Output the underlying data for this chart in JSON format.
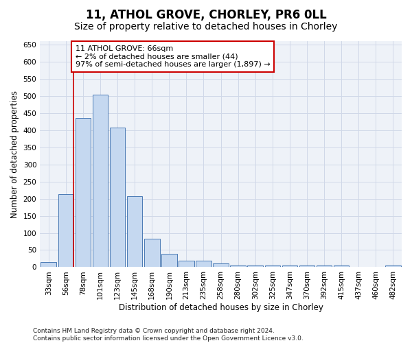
{
  "title": "11, ATHOL GROVE, CHORLEY, PR6 0LL",
  "subtitle": "Size of property relative to detached houses in Chorley",
  "xlabel": "Distribution of detached houses by size in Chorley",
  "ylabel": "Number of detached properties",
  "categories": [
    "33sqm",
    "56sqm",
    "78sqm",
    "101sqm",
    "123sqm",
    "145sqm",
    "168sqm",
    "190sqm",
    "213sqm",
    "235sqm",
    "258sqm",
    "280sqm",
    "302sqm",
    "325sqm",
    "347sqm",
    "370sqm",
    "392sqm",
    "415sqm",
    "437sqm",
    "460sqm",
    "482sqm"
  ],
  "values": [
    15,
    213,
    435,
    503,
    407,
    207,
    84,
    38,
    18,
    18,
    10,
    5,
    4,
    4,
    4,
    4,
    4,
    4,
    1,
    1,
    4
  ],
  "bar_color": "#c5d8f0",
  "bar_edge_color": "#4a7ab5",
  "red_line_index": 1,
  "annotation_text": "11 ATHOL GROVE: 66sqm\n← 2% of detached houses are smaller (44)\n97% of semi-detached houses are larger (1,897) →",
  "annotation_box_color": "#ffffff",
  "annotation_box_edge_color": "#cc0000",
  "red_line_color": "#cc0000",
  "grid_color": "#d0d8e8",
  "background_color": "#eef2f8",
  "footer_text": "Contains HM Land Registry data © Crown copyright and database right 2024.\nContains public sector information licensed under the Open Government Licence v3.0.",
  "ylim": [
    0,
    660
  ],
  "yticks": [
    0,
    50,
    100,
    150,
    200,
    250,
    300,
    350,
    400,
    450,
    500,
    550,
    600,
    650
  ],
  "title_fontsize": 12,
  "subtitle_fontsize": 10,
  "axis_label_fontsize": 8.5,
  "tick_fontsize": 7.5,
  "annotation_fontsize": 8,
  "footer_fontsize": 6.5
}
